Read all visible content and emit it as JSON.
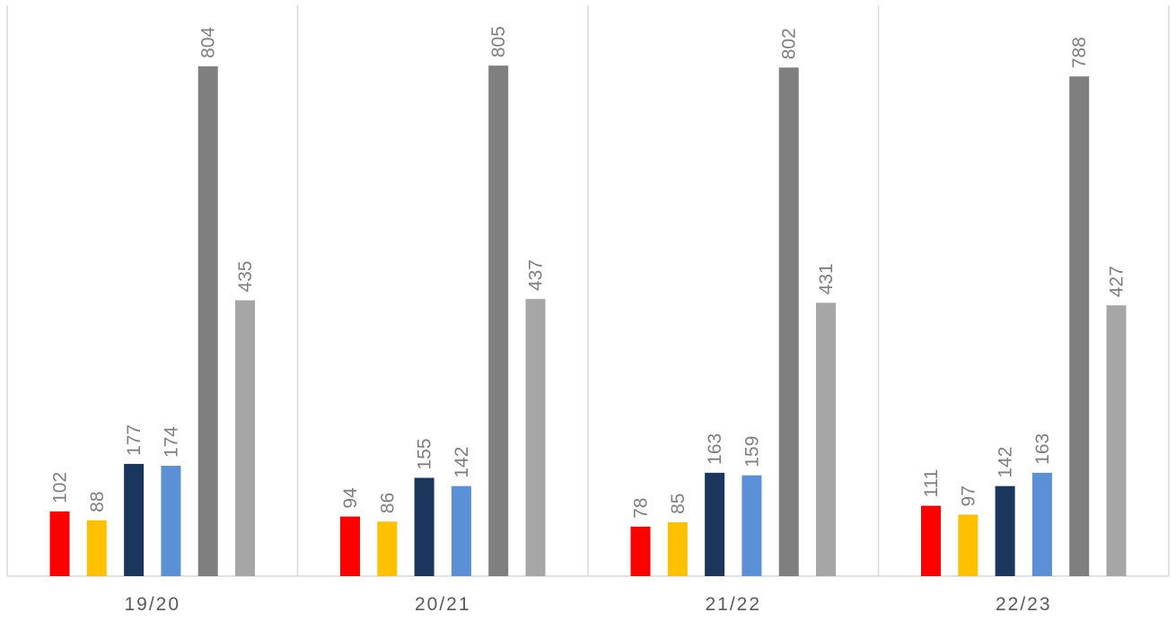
{
  "chart_data": {
    "type": "bar",
    "categories": [
      "19/20",
      "20/21",
      "21/22",
      "22/23"
    ],
    "series": [
      {
        "values": [
          102,
          94,
          78,
          111
        ],
        "color": "#ff0000"
      },
      {
        "values": [
          88,
          86,
          85,
          97
        ],
        "color": "#ffc000"
      },
      {
        "values": [
          177,
          155,
          163,
          142
        ],
        "color": "#1b365d"
      },
      {
        "values": [
          174,
          142,
          159,
          163
        ],
        "color": "#5b8fd6"
      },
      {
        "values": [
          804,
          805,
          802,
          788
        ],
        "color": "#7f7f7f"
      },
      {
        "values": [
          435,
          437,
          431,
          427
        ],
        "color": "#a6a6a6"
      }
    ],
    "title": "",
    "xlabel": "",
    "ylabel": "",
    "ylim": [
      0,
      900
    ],
    "grid": false,
    "legend": "none",
    "data_labels": "rotated, above bars",
    "category_separators": true
  }
}
